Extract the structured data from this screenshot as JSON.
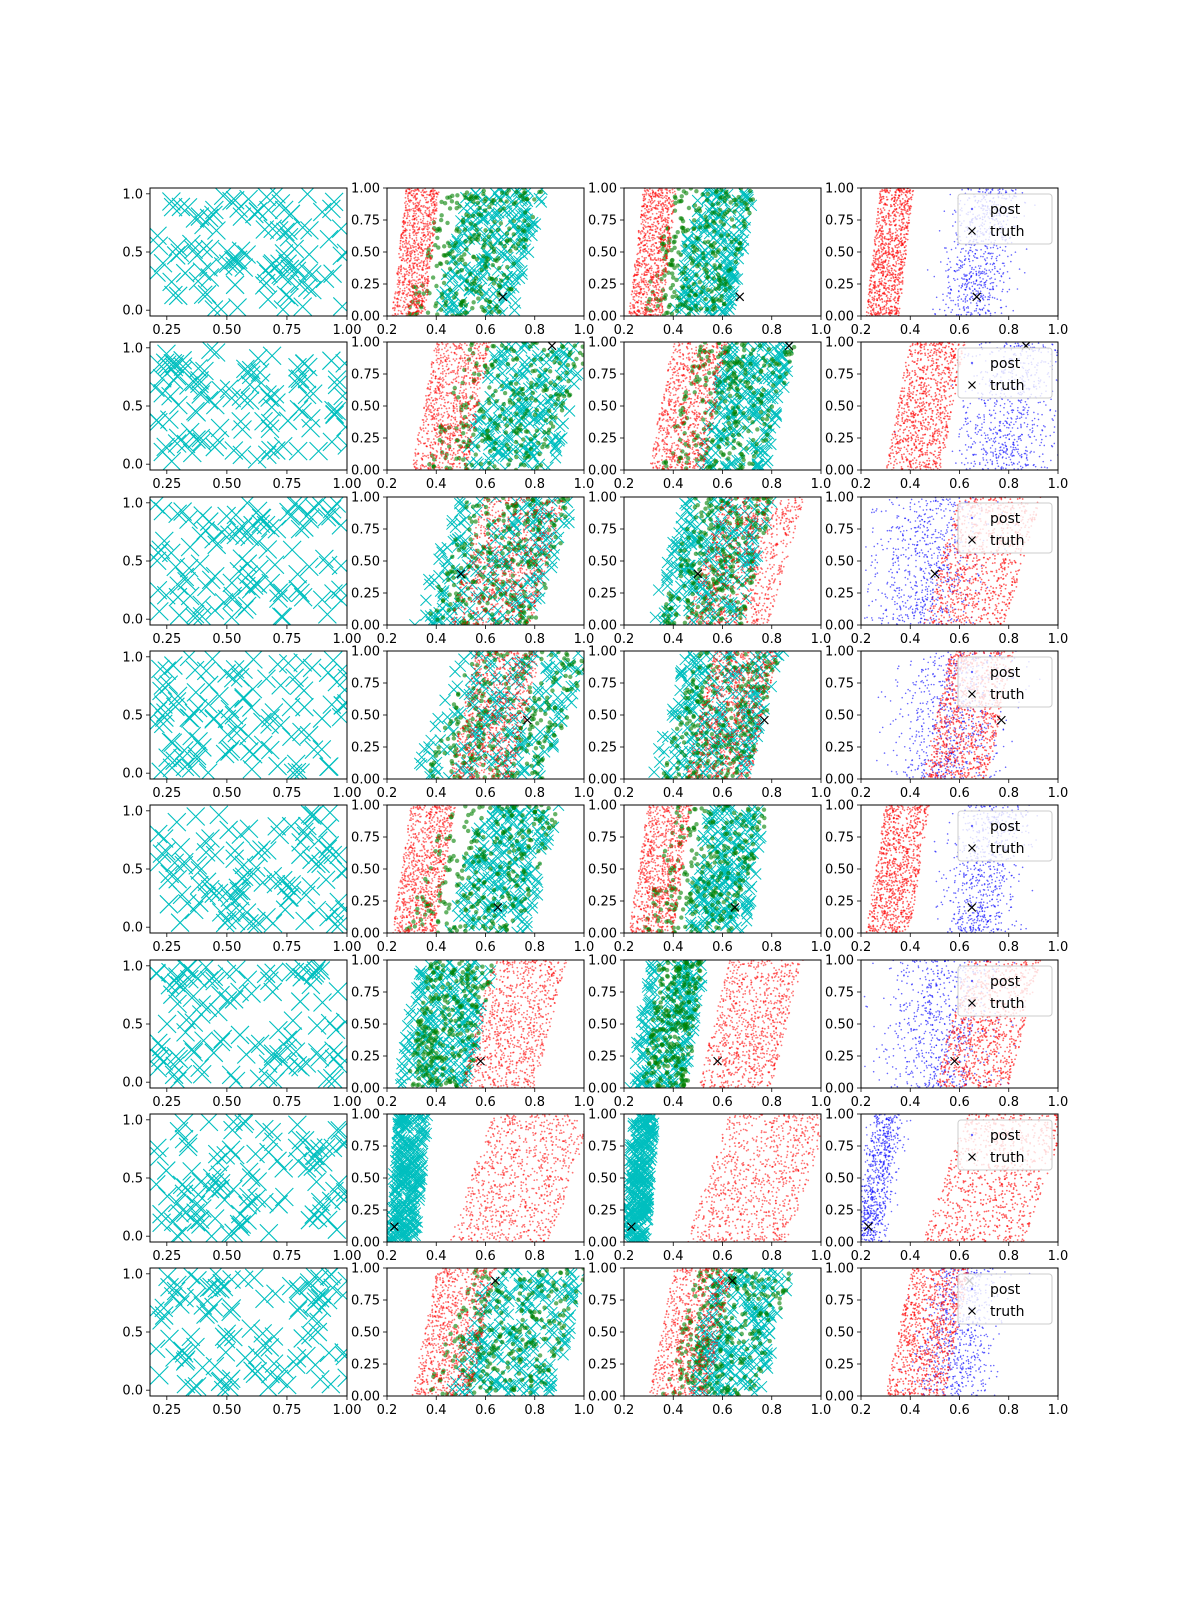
{
  "figure": {
    "rows": 8,
    "cols": 4
  },
  "colors": {
    "cyan": "#00bfbf",
    "green": "#008000",
    "red": "#ff0000",
    "blue": "#0000ff",
    "black": "#000000"
  },
  "legend": {
    "post": "post",
    "truth": "truth",
    "placement": "upper right"
  },
  "chart_data": [
    {
      "row": 1,
      "truth": [
        0.67,
        0.15
      ],
      "mode": "two-band",
      "red_x": [
        0.22,
        0.4
      ],
      "cyan_x": [
        0.4,
        0.82
      ],
      "blue_x": [
        0.55,
        0.82
      ]
    },
    {
      "row": 2,
      "truth": [
        0.87,
        0.97
      ],
      "mode": "two-band",
      "red_x": [
        0.3,
        0.6
      ],
      "cyan_x": [
        0.5,
        1.0
      ],
      "blue_x": [
        0.62,
        1.0
      ]
    },
    {
      "row": 3,
      "truth": [
        0.5,
        0.4
      ],
      "mode": "mixed",
      "red_x": [
        0.45,
        0.9
      ],
      "cyan_x": [
        0.3,
        0.95
      ],
      "blue_x": [
        0.25,
        0.7
      ]
    },
    {
      "row": 4,
      "truth": [
        0.77,
        0.46
      ],
      "mode": "mixed",
      "red_x": [
        0.45,
        0.8
      ],
      "cyan_x": [
        0.3,
        1.0
      ],
      "blue_x": [
        0.35,
        0.8
      ]
    },
    {
      "row": 5,
      "truth": [
        0.65,
        0.2
      ],
      "mode": "two-band",
      "red_x": [
        0.22,
        0.46
      ],
      "cyan_x": [
        0.45,
        0.88
      ],
      "blue_x": [
        0.55,
        0.85
      ]
    },
    {
      "row": 6,
      "truth": [
        0.58,
        0.21
      ],
      "mode": "cyan-left",
      "red_x": [
        0.5,
        0.9
      ],
      "cyan_x": [
        0.22,
        0.62
      ],
      "blue_x": [
        0.3,
        0.75
      ]
    },
    {
      "row": 7,
      "truth": [
        0.23,
        0.12
      ],
      "mode": "cyan-left-narrow",
      "red_x": [
        0.45,
        1.0
      ],
      "cyan_x": [
        0.2,
        0.36
      ],
      "blue_x": [
        0.2,
        0.34
      ]
    },
    {
      "row": 8,
      "truth": [
        0.64,
        0.9
      ],
      "mode": "two-band",
      "red_x": [
        0.3,
        0.62
      ],
      "cyan_x": [
        0.45,
        1.0
      ],
      "blue_x": [
        0.45,
        0.75
      ]
    }
  ],
  "axes": {
    "col1": {
      "xlim": [
        0.18,
        1.0
      ],
      "ylim": [
        -0.05,
        1.05
      ],
      "xticks": [
        "0.25",
        "0.50",
        "0.75",
        "1.00"
      ],
      "yticks": [
        "0.0",
        "0.5",
        "1.0"
      ],
      "xtick_values": [
        0.25,
        0.5,
        0.75,
        1.0
      ],
      "ytick_values": [
        0.0,
        0.5,
        1.0
      ]
    },
    "cols234": {
      "xlim": [
        0.2,
        1.0
      ],
      "ylim": [
        0.0,
        1.0
      ],
      "xticks": [
        "0.2",
        "0.4",
        "0.6",
        "0.8",
        "1.0"
      ],
      "yticks": [
        "0.00",
        "0.25",
        "0.50",
        "0.75",
        "1.00"
      ],
      "xtick_values": [
        0.2,
        0.4,
        0.6,
        0.8,
        1.0
      ],
      "ytick_values": [
        0.0,
        0.25,
        0.5,
        0.75,
        1.0
      ]
    }
  }
}
